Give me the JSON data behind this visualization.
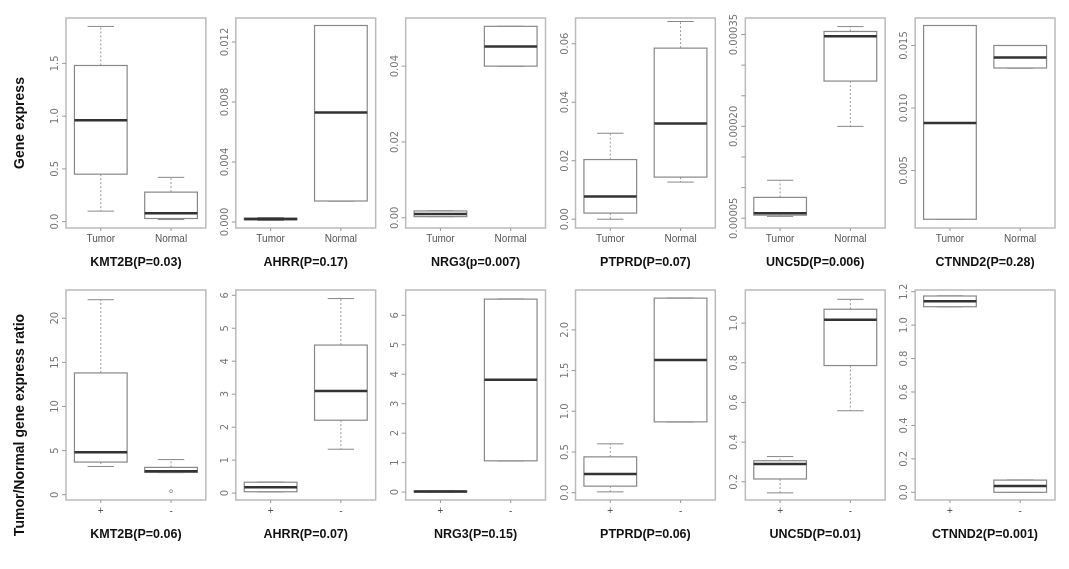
{
  "chart_data": [
    {
      "type": "box",
      "ylabel": "Gene express",
      "xlabel": "KMT2B(P=0.03)",
      "categories": [
        "Tumor",
        "Normal"
      ],
      "ylim": [
        -0.06,
        1.93
      ],
      "yticks": [
        {
          "value": 0,
          "label": "0.0"
        },
        0.5,
        {
          "value": 1,
          "label": "1.0"
        },
        1.5
      ],
      "boxes": [
        {
          "low": 0.1,
          "q1": 0.45,
          "median": 0.96,
          "q3": 1.48,
          "high": 1.85
        },
        {
          "low": 0.02,
          "q1": 0.03,
          "median": 0.08,
          "q3": 0.28,
          "high": 0.42
        }
      ]
    },
    {
      "type": "box",
      "xlabel": "AHRR(P=0.17)",
      "categories": [
        "Tumor",
        "Normal"
      ],
      "ylim": [
        -0.0004,
        0.0136
      ],
      "yticks": [
        {
          "value": 0,
          "label": "0.000"
        },
        0.004,
        0.008,
        0.012
      ],
      "boxes": [
        {
          "low": 0.0001,
          "q1": 0.00015,
          "median": 0.0002,
          "q3": 0.00025,
          "high": 0.0003
        },
        {
          "low": 0.0014,
          "q1": 0.0014,
          "median": 0.0073,
          "q3": 0.0131,
          "high": 0.0131
        }
      ]
    },
    {
      "type": "box",
      "xlabel": "NRG3(p=0.007)",
      "categories": [
        "Tumor",
        "Normal"
      ],
      "ylim": [
        -0.0027,
        0.0527
      ],
      "yticks": [
        {
          "value": 0,
          "label": "0.00"
        },
        0.02,
        0.04
      ],
      "boxes": [
        {
          "low": 0.0003,
          "q1": 0.0003,
          "median": 0.001,
          "q3": 0.0018,
          "high": 0.0018
        },
        {
          "low": 0.04,
          "q1": 0.04,
          "median": 0.0452,
          "q3": 0.0505,
          "high": 0.0505
        }
      ]
    },
    {
      "type": "box",
      "xlabel": "PTPRD(P=0.07)",
      "categories": [
        "Tumor",
        "Normal"
      ],
      "ylim": [
        -0.003,
        0.0688
      ],
      "yticks": [
        {
          "value": 0,
          "label": "0.00"
        },
        0.02,
        0.04,
        0.06
      ],
      "boxes": [
        {
          "low": 0.0,
          "q1": 0.0021,
          "median": 0.0078,
          "q3": 0.0204,
          "high": 0.0294
        },
        {
          "low": 0.0127,
          "q1": 0.0144,
          "median": 0.0327,
          "q3": 0.0585,
          "high": 0.0676
        }
      ]
    },
    {
      "type": "box",
      "xlabel": "UNC5D(P=0.006)",
      "categories": [
        "Tumor",
        "Normal"
      ],
      "ylim": [
        3.4e-05,
        0.000377
      ],
      "yticks": [
        {
          "value": 5e-05,
          "label": "0.00005"
        },
        {
          "value": 0.0001,
          "label": null
        },
        {
          "value": 0.00015,
          "label": null
        },
        {
          "value": 0.0002,
          "label": "0.00020"
        },
        {
          "value": 0.00025,
          "label": null
        },
        {
          "value": 0.0003,
          "label": null
        },
        {
          "value": 0.00035,
          "label": "0.00035"
        }
      ],
      "boxes": [
        {
          "low": 5.3e-05,
          "q1": 5.5e-05,
          "median": 5.8e-05,
          "q3": 8.4e-05,
          "high": 0.000112
        },
        {
          "low": 0.0002,
          "q1": 0.000274,
          "median": 0.000347,
          "q3": 0.000355,
          "high": 0.000363
        }
      ]
    },
    {
      "type": "box",
      "xlabel": "CTNND2(P=0.28)",
      "categories": [
        "Tumor",
        "Normal"
      ],
      "ylim": [
        0.0004,
        0.0172
      ],
      "yticks": [
        0.005,
        {
          "value": 0.01,
          "label": "0.010"
        },
        0.015
      ],
      "boxes": [
        {
          "low": 0.0011,
          "q1": 0.0011,
          "median": 0.0088,
          "q3": 0.0166,
          "high": 0.0166
        },
        {
          "low": 0.0132,
          "q1": 0.0132,
          "median": 0.01405,
          "q3": 0.015,
          "high": 0.015
        }
      ]
    },
    {
      "type": "box",
      "ylabel": "Tumor/Normal gene express ratio",
      "xlabel": "KMT2B(P=0.06)",
      "categories": [
        "+",
        "-"
      ],
      "ylim": [
        -0.6,
        23.2
      ],
      "yticks": [
        0,
        5,
        10,
        15,
        20
      ],
      "boxes": [
        {
          "low": 3.2,
          "q1": 3.7,
          "median": 4.8,
          "q3": 13.8,
          "high": 22.1
        },
        {
          "low": 2.5,
          "q1": 2.54,
          "median": 2.66,
          "q3": 3.1,
          "high": 3.98,
          "outliers": [
            0.4
          ]
        }
      ]
    },
    {
      "type": "box",
      "xlabel": "AHRR(P=0.07)",
      "categories": [
        "+",
        "-"
      ],
      "ylim": [
        -0.21,
        6.16
      ],
      "yticks": [
        0,
        1,
        2,
        3,
        4,
        5,
        6
      ],
      "boxes": [
        {
          "low": 0.04,
          "q1": 0.04,
          "median": 0.18,
          "q3": 0.33,
          "high": 0.33
        },
        {
          "low": 1.33,
          "q1": 2.21,
          "median": 3.1,
          "q3": 4.49,
          "high": 5.9
        }
      ]
    },
    {
      "type": "box",
      "xlabel": "NRG3(P=0.15)",
      "categories": [
        "+",
        "-"
      ],
      "ylim": [
        -0.27,
        6.86
      ],
      "yticks": [
        0,
        1,
        2,
        3,
        4,
        5,
        6
      ],
      "boxes": [
        {
          "low": 0.0,
          "q1": 0.0,
          "median": 0.02,
          "q3": 0.04,
          "high": 0.04
        },
        {
          "low": 1.06,
          "q1": 1.06,
          "median": 3.81,
          "q3": 6.55,
          "high": 6.55
        }
      ]
    },
    {
      "type": "box",
      "xlabel": "PTPRD(P=0.06)",
      "categories": [
        "+",
        "-"
      ],
      "ylim": [
        -0.09,
        2.49
      ],
      "yticks": [
        {
          "value": 0,
          "label": "0.0"
        },
        0.5,
        {
          "value": 1,
          "label": "1.0"
        },
        1.5,
        {
          "value": 2,
          "label": "2.0"
        }
      ],
      "boxes": [
        {
          "low": 0.01,
          "q1": 0.08,
          "median": 0.23,
          "q3": 0.44,
          "high": 0.6
        },
        {
          "low": 0.87,
          "q1": 0.87,
          "median": 1.63,
          "q3": 2.39,
          "high": 2.39
        }
      ]
    },
    {
      "type": "box",
      "xlabel": "UNC5D(P=0.01)",
      "categories": [
        "+",
        "-"
      ],
      "ylim": [
        0.108,
        1.167
      ],
      "yticks": [
        0.2,
        0.4,
        0.6,
        0.8,
        {
          "value": 1,
          "label": "1.0"
        }
      ],
      "boxes": [
        {
          "low": 0.144,
          "q1": 0.214,
          "median": 0.289,
          "q3": 0.306,
          "high": 0.327
        },
        {
          "low": 0.558,
          "q1": 0.786,
          "median": 1.017,
          "q3": 1.07,
          "high": 1.12
        }
      ]
    },
    {
      "type": "box",
      "xlabel": "CTNND2(P=0.001)",
      "categories": [
        "+",
        "-"
      ],
      "ylim": [
        -0.046,
        1.21
      ],
      "yticks": [
        {
          "value": 0,
          "label": "0.0"
        },
        0.2,
        0.4,
        0.6,
        0.8,
        {
          "value": 1,
          "label": "1.0"
        },
        1.2
      ],
      "boxes": [
        {
          "low": 1.11,
          "q1": 1.11,
          "median": 1.143,
          "q3": 1.174,
          "high": 1.174
        },
        {
          "low": 0.0,
          "q1": 0.0,
          "median": 0.038,
          "q3": 0.073,
          "high": 0.073
        }
      ]
    }
  ]
}
